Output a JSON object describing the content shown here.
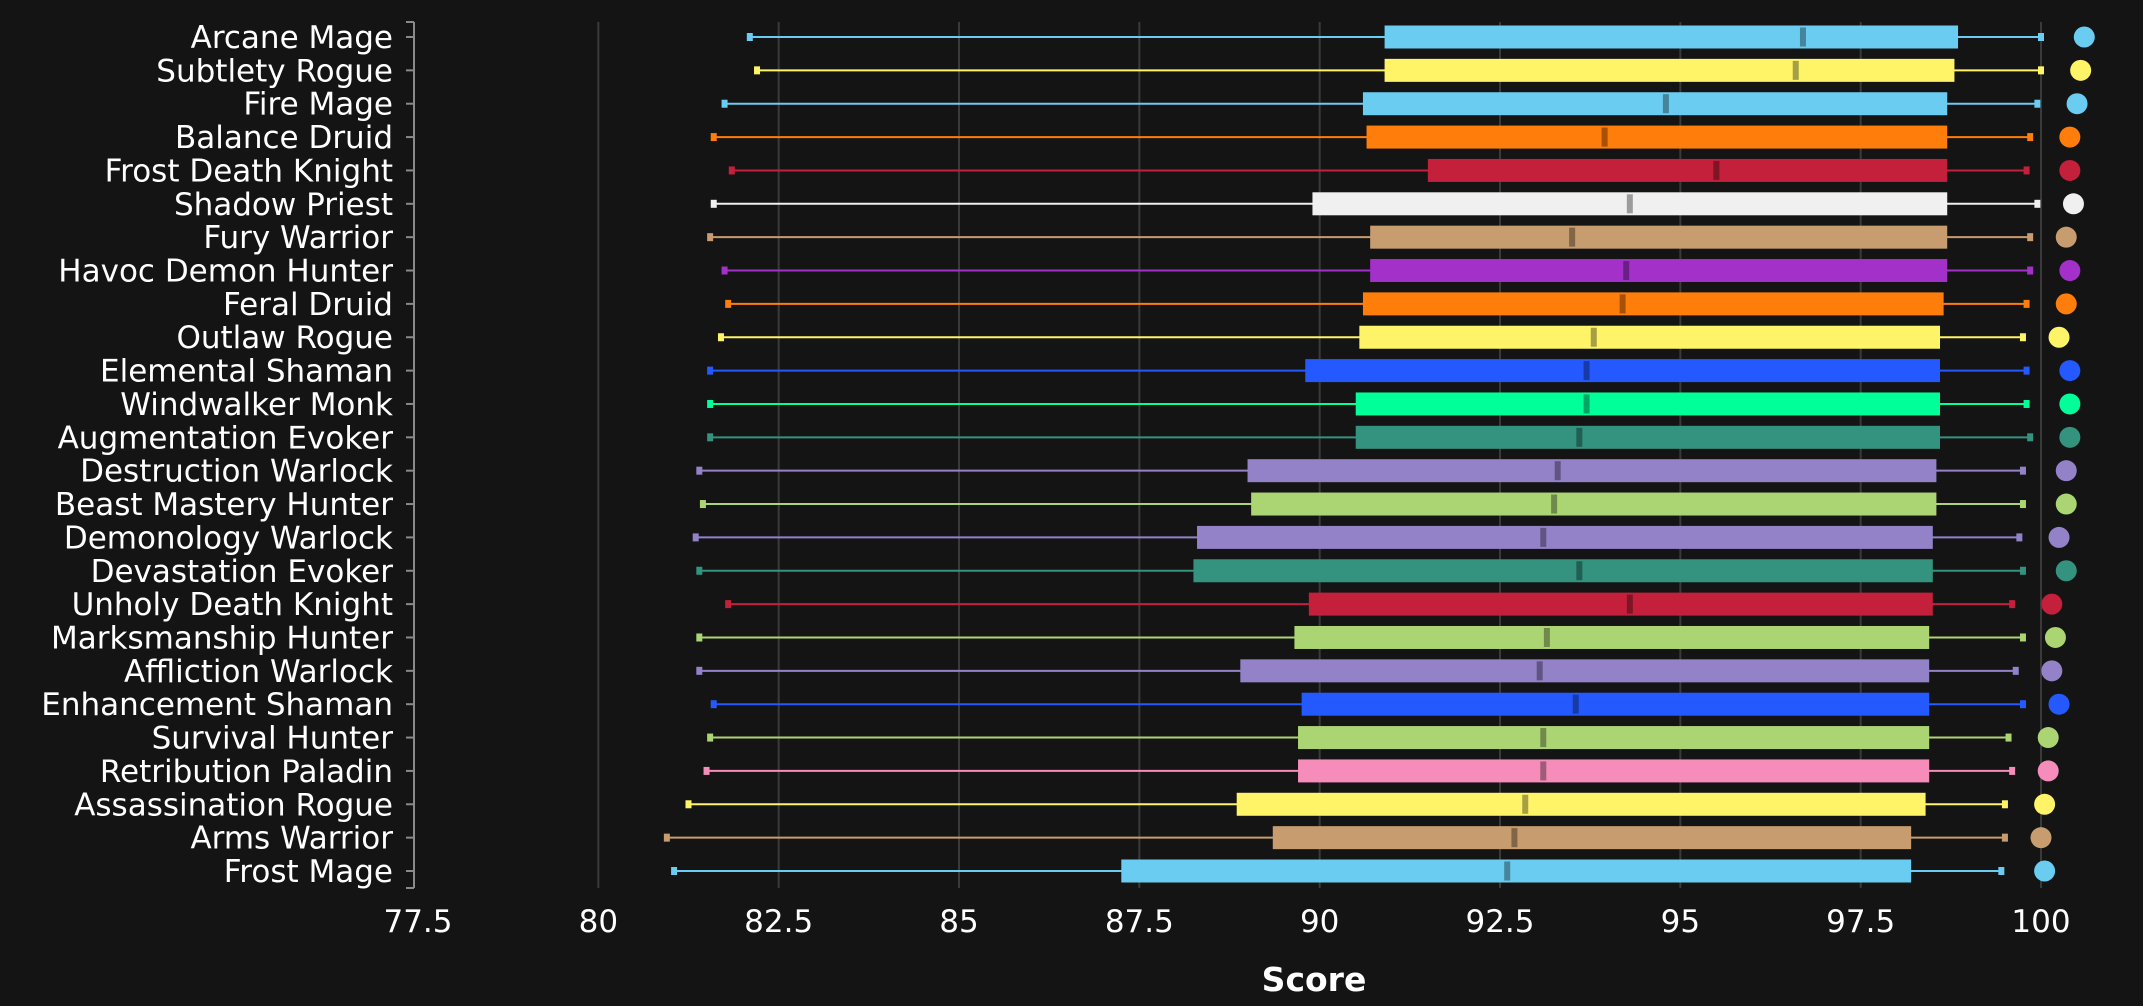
{
  "chart_data": {
    "type": "boxplot",
    "title": "",
    "xlabel": "Score",
    "ylabel": "",
    "xlim": [
      77.5,
      100
    ],
    "x_ticks": [
      "77.5",
      "80",
      "82.5",
      "85",
      "87.5",
      "90",
      "92.5",
      "95",
      "97.5",
      "100"
    ],
    "grid": "vertical",
    "legend": "none",
    "categories": [
      {
        "label": "Arcane Mage",
        "color": "#69ccf0",
        "min": 82.1,
        "q1": 90.9,
        "median": 96.7,
        "q3": 98.85,
        "max": 100.0,
        "point": 100.6
      },
      {
        "label": "Subtlety Rogue",
        "color": "#fff468",
        "min": 82.2,
        "q1": 90.9,
        "median": 96.6,
        "q3": 98.8,
        "max": 100.0,
        "point": 100.55
      },
      {
        "label": "Fire Mage",
        "color": "#69ccf0",
        "min": 81.75,
        "q1": 90.6,
        "median": 94.8,
        "q3": 98.7,
        "max": 99.95,
        "point": 100.5
      },
      {
        "label": "Balance Druid",
        "color": "#ff7d0a",
        "min": 81.6,
        "q1": 90.65,
        "median": 93.95,
        "q3": 98.7,
        "max": 99.85,
        "point": 100.4
      },
      {
        "label": "Frost Death Knight",
        "color": "#c41f3b",
        "min": 81.85,
        "q1": 91.5,
        "median": 95.5,
        "q3": 98.7,
        "max": 99.8,
        "point": 100.4
      },
      {
        "label": "Shadow Priest",
        "color": "#f0f0f0",
        "min": 81.6,
        "q1": 89.9,
        "median": 94.3,
        "q3": 98.7,
        "max": 99.95,
        "point": 100.45
      },
      {
        "label": "Fury Warrior",
        "color": "#c79c6e",
        "min": 81.55,
        "q1": 90.7,
        "median": 93.5,
        "q3": 98.7,
        "max": 99.85,
        "point": 100.35
      },
      {
        "label": "Havoc Demon Hunter",
        "color": "#a330c9",
        "min": 81.75,
        "q1": 90.7,
        "median": 94.25,
        "q3": 98.7,
        "max": 99.85,
        "point": 100.4
      },
      {
        "label": "Feral Druid",
        "color": "#ff7d0a",
        "min": 81.8,
        "q1": 90.6,
        "median": 94.2,
        "q3": 98.65,
        "max": 99.8,
        "point": 100.35
      },
      {
        "label": "Outlaw Rogue",
        "color": "#fff468",
        "min": 81.7,
        "q1": 90.55,
        "median": 93.8,
        "q3": 98.6,
        "max": 99.75,
        "point": 100.25
      },
      {
        "label": "Elemental Shaman",
        "color": "#2459ff",
        "min": 81.55,
        "q1": 89.8,
        "median": 93.7,
        "q3": 98.6,
        "max": 99.8,
        "point": 100.4
      },
      {
        "label": "Windwalker Monk",
        "color": "#00ff98",
        "min": 81.55,
        "q1": 90.5,
        "median": 93.7,
        "q3": 98.6,
        "max": 99.8,
        "point": 100.4
      },
      {
        "label": "Augmentation Evoker",
        "color": "#33937f",
        "min": 81.55,
        "q1": 90.5,
        "median": 93.6,
        "q3": 98.6,
        "max": 99.85,
        "point": 100.4
      },
      {
        "label": "Destruction Warlock",
        "color": "#9482c9",
        "min": 81.4,
        "q1": 89.0,
        "median": 93.3,
        "q3": 98.55,
        "max": 99.75,
        "point": 100.35
      },
      {
        "label": "Beast Mastery Hunter",
        "color": "#abd473",
        "min": 81.45,
        "q1": 89.05,
        "median": 93.25,
        "q3": 98.55,
        "max": 99.75,
        "point": 100.35
      },
      {
        "label": "Demonology Warlock",
        "color": "#9482c9",
        "min": 81.35,
        "q1": 88.3,
        "median": 93.1,
        "q3": 98.5,
        "max": 99.7,
        "point": 100.25
      },
      {
        "label": "Devastation Evoker",
        "color": "#33937f",
        "min": 81.4,
        "q1": 88.25,
        "median": 93.6,
        "q3": 98.5,
        "max": 99.75,
        "point": 100.35
      },
      {
        "label": "Unholy Death Knight",
        "color": "#c41f3b",
        "min": 81.8,
        "q1": 89.85,
        "median": 94.3,
        "q3": 98.5,
        "max": 99.6,
        "point": 100.15
      },
      {
        "label": "Marksmanship Hunter",
        "color": "#abd473",
        "min": 81.4,
        "q1": 89.65,
        "median": 93.15,
        "q3": 98.45,
        "max": 99.75,
        "point": 100.2
      },
      {
        "label": "Affliction Warlock",
        "color": "#9482c9",
        "min": 81.4,
        "q1": 88.9,
        "median": 93.05,
        "q3": 98.45,
        "max": 99.65,
        "point": 100.15
      },
      {
        "label": "Enhancement Shaman",
        "color": "#2459ff",
        "min": 81.6,
        "q1": 89.75,
        "median": 93.55,
        "q3": 98.45,
        "max": 99.75,
        "point": 100.25
      },
      {
        "label": "Survival Hunter",
        "color": "#abd473",
        "min": 81.55,
        "q1": 89.7,
        "median": 93.1,
        "q3": 98.45,
        "max": 99.55,
        "point": 100.1
      },
      {
        "label": "Retribution Paladin",
        "color": "#f58cba",
        "min": 81.5,
        "q1": 89.7,
        "median": 93.1,
        "q3": 98.45,
        "max": 99.6,
        "point": 100.1
      },
      {
        "label": "Assassination Rogue",
        "color": "#fff468",
        "min": 81.25,
        "q1": 88.85,
        "median": 92.85,
        "q3": 98.4,
        "max": 99.5,
        "point": 100.05
      },
      {
        "label": "Arms Warrior",
        "color": "#c79c6e",
        "min": 80.95,
        "q1": 89.35,
        "median": 92.7,
        "q3": 98.2,
        "max": 99.5,
        "point": 100.0
      },
      {
        "label": "Frost Mage",
        "color": "#69ccf0",
        "min": 81.05,
        "q1": 87.25,
        "median": 92.6,
        "q3": 98.2,
        "max": 99.45,
        "point": 100.05
      }
    ]
  }
}
